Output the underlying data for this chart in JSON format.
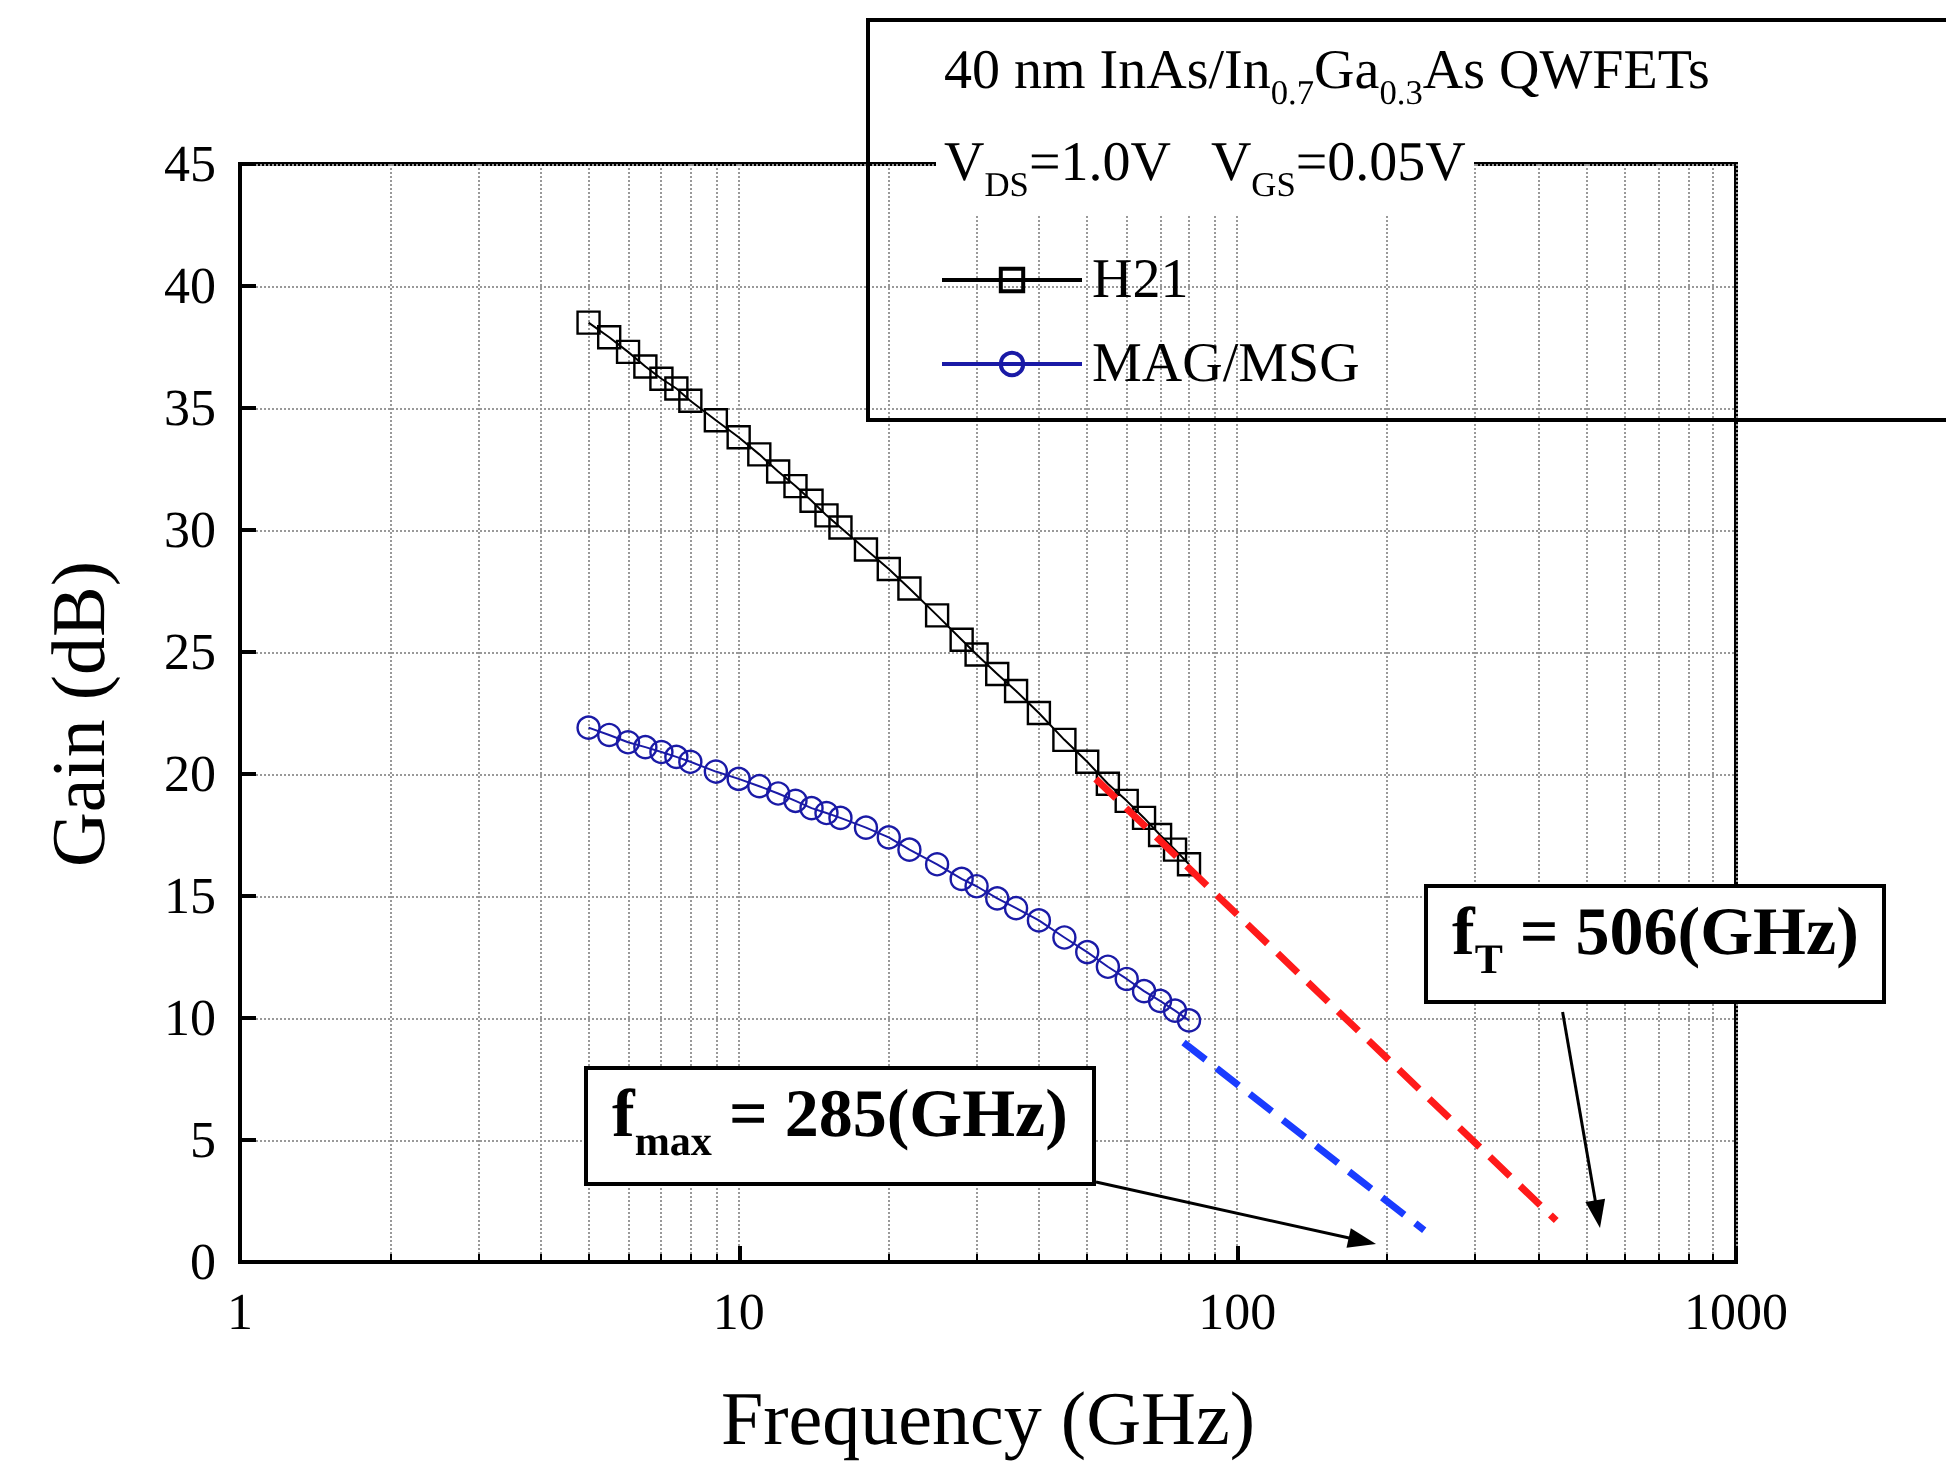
{
  "chart_data": {
    "type": "line",
    "title": "40 nm InAs/In$_{0.7}$Ga$_{0.3}$As QWFETs",
    "subtitle": "V$_{DS}$=1.0V   V$_{GS}$=0.05V",
    "xlabel": "Frequency (GHz)",
    "ylabel": "Gain (dB)",
    "log": "x",
    "xlim": [
      1,
      1000
    ],
    "xticks": [
      1,
      10,
      100,
      1000
    ],
    "ylim": [
      0,
      45
    ],
    "yticks": [
      0,
      5,
      10,
      15,
      20,
      25,
      30,
      35,
      40,
      45
    ],
    "grid": true,
    "legend": "top right",
    "series": [
      {
        "name": "H21",
        "marker": "square",
        "color": "#000000",
        "x": [
          5,
          5.5,
          6,
          6.5,
          7,
          7.5,
          8,
          9,
          10,
          11,
          12,
          13,
          14,
          15,
          16,
          18,
          20,
          22,
          25,
          28,
          30,
          33,
          36,
          40,
          45,
          50,
          55,
          60,
          65,
          70,
          75,
          80
        ],
        "values": [
          38.5,
          37.9,
          37.3,
          36.7,
          36.2,
          35.8,
          35.3,
          34.5,
          33.8,
          33.1,
          32.4,
          31.8,
          31.2,
          30.6,
          30.1,
          29.2,
          28.4,
          27.6,
          26.5,
          25.5,
          24.9,
          24.1,
          23.4,
          22.5,
          21.4,
          20.5,
          19.6,
          18.9,
          18.2,
          17.5,
          16.9,
          16.3
        ]
      },
      {
        "name": "MAG/MSG",
        "marker": "circle",
        "color": "#1a1aa6",
        "x": [
          5,
          5.5,
          6,
          6.5,
          7,
          7.5,
          8,
          9,
          10,
          11,
          12,
          13,
          14,
          15,
          16,
          18,
          20,
          22,
          25,
          28,
          30,
          33,
          36,
          40,
          45,
          50,
          55,
          60,
          65,
          70,
          75,
          80
        ],
        "values": [
          21.9,
          21.6,
          21.3,
          21.1,
          20.9,
          20.7,
          20.5,
          20.1,
          19.8,
          19.5,
          19.2,
          18.9,
          18.6,
          18.4,
          18.2,
          17.8,
          17.4,
          16.9,
          16.3,
          15.7,
          15.4,
          14.9,
          14.5,
          14.0,
          13.3,
          12.7,
          12.1,
          11.6,
          11.1,
          10.7,
          10.3,
          9.9
        ]
      },
      {
        "marker": "none",
        "line_style": "dashed",
        "color": "#ff1a1a",
        "x": [
          52,
          436
        ],
        "values": [
          19.8,
          1.7
        ]
      },
      {
        "marker": "none",
        "line_style": "dashed",
        "color": "#1a3cff",
        "x": [
          78,
          237
        ],
        "values": [
          9.0,
          1.3
        ]
      }
    ],
    "annotations": [
      "f$_{T}$ = 506(GHz)",
      "f$_{max}$ = 285(GHz)"
    ]
  }
}
